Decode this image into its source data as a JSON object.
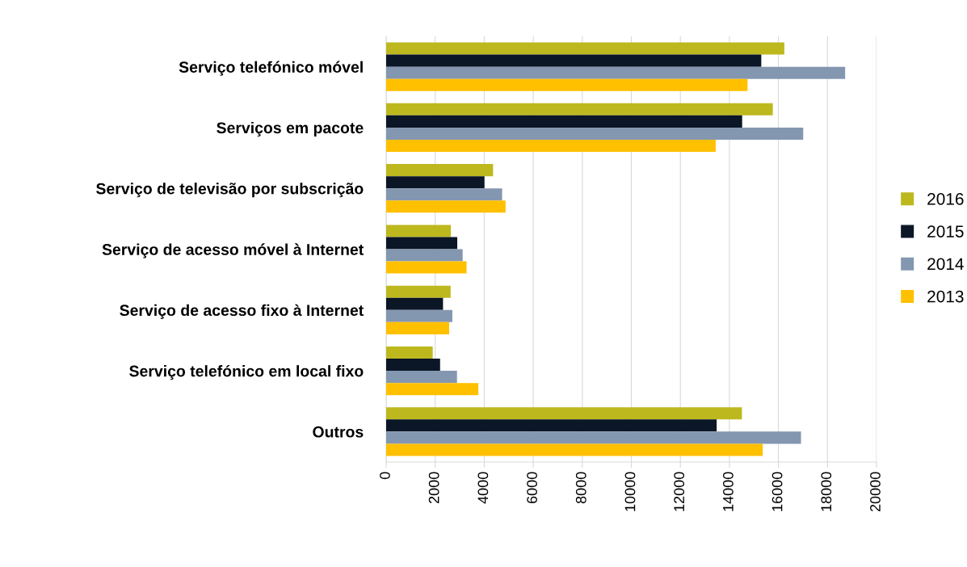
{
  "chart_data": {
    "type": "bar",
    "orientation": "horizontal",
    "categories": [
      "Serviço telefónico móvel",
      "Serviços em pacote",
      "Serviço de televisão por subscrição",
      "Serviço de acesso móvel à Internet",
      "Serviço de acesso fixo à Internet",
      "Serviço telefónico em local fixo",
      "Outros"
    ],
    "series": [
      {
        "name": "2016",
        "color": "#bdb81e",
        "values": [
          16240,
          15770,
          4360,
          2640,
          2630,
          1900,
          14510
        ]
      },
      {
        "name": "2015",
        "color": "#0b1626",
        "values": [
          15300,
          14520,
          4010,
          2900,
          2320,
          2200,
          13480
        ]
      },
      {
        "name": "2014",
        "color": "#8497b0",
        "values": [
          18720,
          17010,
          4730,
          3120,
          2700,
          2890,
          16920
        ]
      },
      {
        "name": "2013",
        "color": "#ffc000",
        "values": [
          14740,
          13440,
          4870,
          3280,
          2570,
          3760,
          15360
        ]
      }
    ],
    "xlim": [
      0,
      20000
    ],
    "xticks": [
      0,
      2000,
      4000,
      6000,
      8000,
      10000,
      12000,
      14000,
      16000,
      18000,
      20000
    ],
    "grid": "x",
    "legend": "right"
  }
}
